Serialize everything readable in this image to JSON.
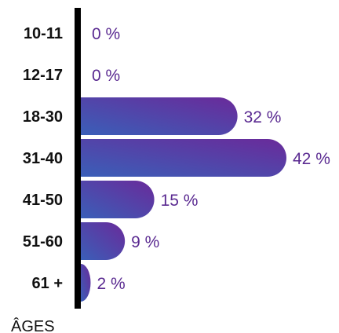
{
  "chart_data": {
    "type": "bar",
    "orientation": "horizontal",
    "axis_title": "ÂGES",
    "categories": [
      "10-11",
      "12-17",
      "18-30",
      "31-40",
      "41-50",
      "51-60",
      "61 +"
    ],
    "values": [
      0,
      0,
      32,
      42,
      15,
      9,
      2
    ],
    "value_labels": [
      "0 %",
      "0 %",
      "32 %",
      "42 %",
      "15 %",
      "9 %",
      "2 %"
    ],
    "unit": "%",
    "xlim": [
      0,
      42
    ],
    "grid": false,
    "legend": "none",
    "colors": {
      "axis": "#000000",
      "bar_gradient_start": "#3a5fb8",
      "bar_gradient_end": "#6a2a9a",
      "value_text": "#5a2a91",
      "category_text": "#111111"
    }
  }
}
